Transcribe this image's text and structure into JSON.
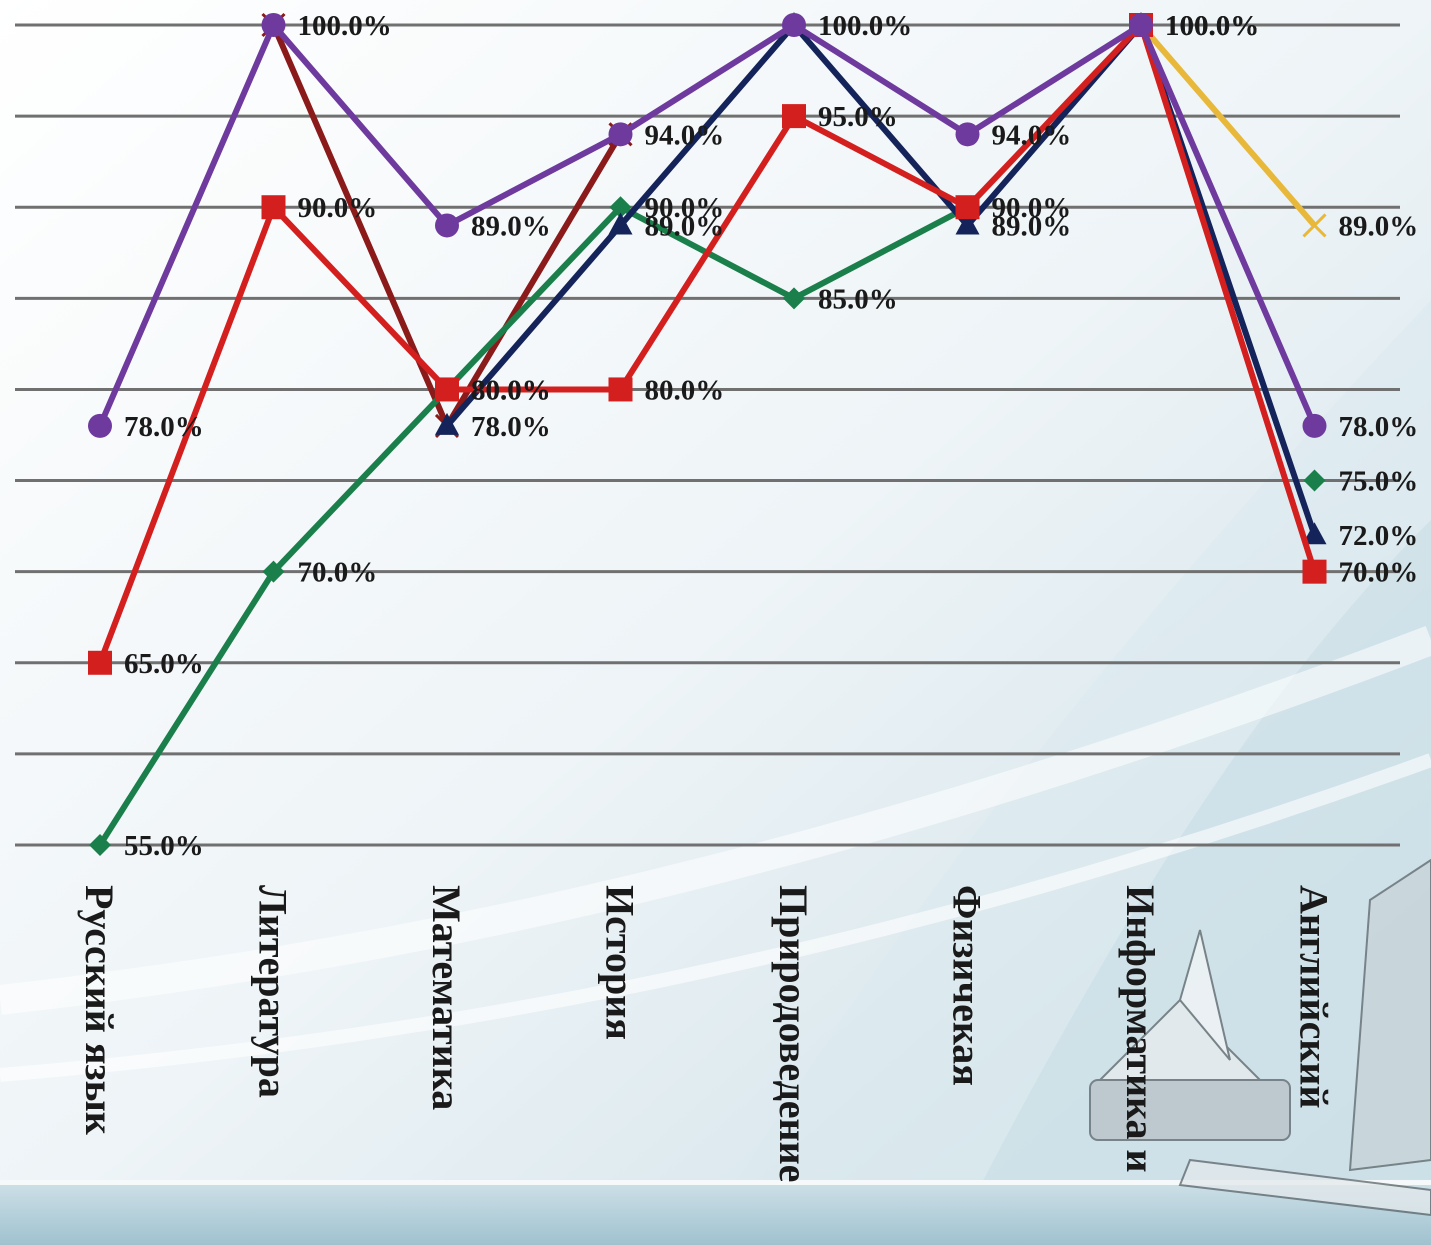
{
  "chart_data": {
    "type": "line",
    "categories": [
      "Русский язык",
      "Литература",
      "Математика",
      "История",
      "Природоведение",
      "Физичекая",
      "Информатика и",
      "Английский"
    ],
    "ylim": [
      0.55,
      1.0
    ],
    "grid": true,
    "series": [
      {
        "color": "#e8b83a",
        "marker": "x",
        "values": [
          null,
          null,
          null,
          null,
          null,
          null,
          1.0,
          0.89
        ],
        "labels": [
          "",
          "",
          "",
          "",
          "",
          "",
          "",
          "89.0%"
        ]
      },
      {
        "color": "#8b1a1a",
        "marker": "x",
        "values": [
          null,
          1.0,
          0.78,
          0.94,
          null,
          null,
          null,
          null
        ],
        "labels": [
          "",
          "",
          "",
          "",
          "",
          "",
          "",
          ""
        ]
      },
      {
        "color": "#1a7f4a",
        "marker": "diamond",
        "values": [
          0.55,
          0.7,
          0.8,
          0.9,
          0.85,
          0.9,
          null,
          0.75
        ],
        "labels": [
          "55.0%",
          "70.0%",
          "80.0%",
          "90.0%",
          "85.0%",
          "",
          "",
          "75.0%"
        ]
      },
      {
        "color": "#14245a",
        "marker": "triangle",
        "values": [
          null,
          null,
          0.78,
          0.89,
          1.0,
          0.89,
          1.0,
          0.72
        ],
        "labels": [
          "",
          "",
          "78.0%",
          "89.0%",
          "",
          "89.0%",
          "",
          "72.0%"
        ]
      },
      {
        "color": "#d41f1f",
        "marker": "square",
        "values": [
          0.65,
          0.9,
          0.8,
          0.8,
          0.95,
          0.9,
          1.0,
          0.7
        ],
        "labels": [
          "65.0%",
          "90.0%",
          "80.0%",
          "80.0%",
          "95.0%",
          "90.0%",
          "100.0%",
          "70.0%"
        ]
      },
      {
        "color": "#6e3a9e",
        "marker": "circle",
        "values": [
          0.78,
          1.0,
          0.89,
          0.94,
          1.0,
          0.94,
          1.0,
          0.78
        ],
        "labels": [
          "78.0%",
          "100.0%",
          "89.0%",
          "94.0%",
          "100.0%",
          "94.0%",
          "100.0%",
          "78.0%"
        ]
      }
    ]
  }
}
